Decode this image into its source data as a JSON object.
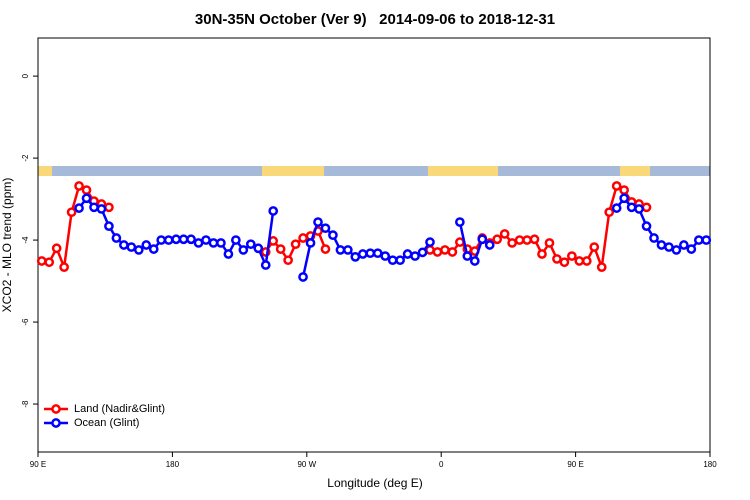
{
  "chart_data": {
    "type": "line",
    "title": "30N-35N October (Ver 9)   2014-09-06 to 2018-12-31",
    "x_label": "Longitude (deg E)",
    "y_label": "XCO2 - MLO trend (ppm)",
    "xlim": [
      90,
      540
    ],
    "xticks": [
      {
        "value": 90,
        "label": "90 E"
      },
      180,
      {
        "value": 270,
        "label": "90 W"
      },
      {
        "value": 360,
        "label": "0"
      },
      {
        "value": 450,
        "label": "90 E"
      },
      {
        "value": 540,
        "label": "180"
      }
    ],
    "ylim": [
      -9.17,
      0.93
    ],
    "yticks": [
      0,
      -2,
      -4,
      -6,
      -8
    ],
    "legend": "bottom-left",
    "x": [
      92.5,
      97.5,
      102.5,
      107.5,
      112.5,
      117.5,
      122.5,
      127.5,
      132.5,
      137.5,
      142.5,
      147.5,
      152.5,
      157.5,
      162.5,
      167.5,
      172.5,
      177.5,
      182.5,
      187.5,
      192.5,
      197.5,
      202.5,
      207.5,
      212.5,
      217.5,
      222.5,
      227.5,
      232.5,
      237.5,
      242.5,
      247.5,
      252.5,
      257.5,
      262.5,
      267.5,
      272.5,
      277.5,
      282.5,
      287.5,
      292.5,
      297.5,
      302.5,
      307.5,
      312.5,
      317.5,
      322.5,
      327.5,
      332.5,
      337.5,
      342.5,
      347.5,
      352.5,
      357.5,
      362.5,
      367.5,
      372.5,
      377.5,
      382.5,
      387.5,
      392.5,
      397.5,
      402.5,
      407.5,
      412.5,
      417.5,
      422.5,
      427.5,
      432.5,
      437.5,
      442.5,
      447.5,
      452.5,
      457.5,
      462.5,
      467.5,
      472.5,
      477.5,
      482.5,
      487.5,
      492.5,
      497.5,
      502.5,
      507.5,
      512.5,
      517.5,
      522.5,
      527.5,
      532.5,
      537.5
    ],
    "series": [
      {
        "name": "Land (Nadir&Glint)",
        "color": "#ff0000",
        "values": [
          -4.51,
          -4.54,
          -4.2,
          -4.66,
          -3.32,
          -2.68,
          -2.78,
          -3.05,
          -3.12,
          -3.2,
          null,
          null,
          null,
          null,
          null,
          null,
          null,
          null,
          null,
          null,
          null,
          null,
          null,
          null,
          null,
          null,
          null,
          null,
          null,
          null,
          -4.29,
          -4.02,
          -4.22,
          -4.49,
          -4.1,
          -3.95,
          -3.9,
          -3.78,
          -4.22,
          null,
          null,
          null,
          null,
          null,
          null,
          null,
          null,
          null,
          null,
          null,
          null,
          null,
          -4.24,
          -4.29,
          -4.24,
          -4.29,
          -4.05,
          -4.22,
          -4.27,
          -3.95,
          -4.07,
          -3.98,
          -3.85,
          -4.07,
          -4.0,
          -4.0,
          -3.98,
          -4.34,
          -4.07,
          -4.46,
          -4.54,
          -4.39,
          -4.51,
          -4.51,
          -4.17,
          -4.66,
          -3.32,
          -2.68,
          -2.78,
          -3.07,
          -3.12,
          -3.2,
          null,
          null,
          null,
          null,
          null,
          null,
          null,
          null
        ]
      },
      {
        "name": "Ocean (Glint)",
        "color": "#0000ff",
        "values": [
          null,
          null,
          null,
          null,
          null,
          -3.22,
          -2.98,
          -3.2,
          -3.24,
          -3.66,
          -3.95,
          -4.12,
          -4.17,
          -4.24,
          -4.12,
          -4.22,
          -4.0,
          -4.0,
          -3.98,
          -3.98,
          -3.98,
          -4.07,
          -4.0,
          -4.07,
          -4.07,
          -4.34,
          -4.0,
          -4.24,
          -4.1,
          -4.2,
          -4.61,
          -3.29,
          null,
          null,
          null,
          -4.9,
          -4.07,
          -3.56,
          -3.71,
          -3.88,
          -4.24,
          -4.24,
          -4.41,
          -4.34,
          -4.32,
          -4.32,
          -4.39,
          -4.49,
          -4.49,
          -4.34,
          -4.39,
          -4.3,
          -4.05,
          null,
          null,
          null,
          -3.56,
          -4.39,
          -4.51,
          -3.98,
          -4.12,
          null,
          null,
          null,
          null,
          null,
          null,
          null,
          null,
          null,
          null,
          null,
          null,
          null,
          null,
          null,
          null,
          -3.22,
          -2.98,
          -3.2,
          -3.24,
          -3.66,
          -3.95,
          -4.12,
          -4.17,
          -4.24,
          -4.12,
          -4.22,
          -4.0,
          -4.0
        ]
      }
    ]
  }
}
